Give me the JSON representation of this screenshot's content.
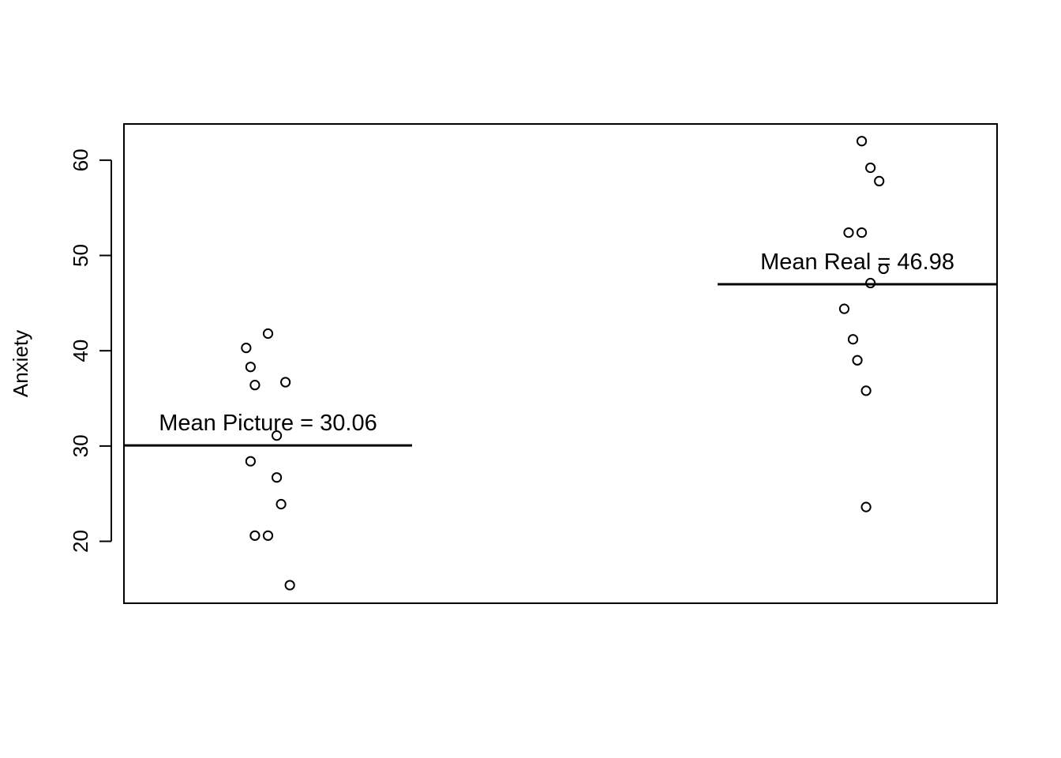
{
  "chart_data": {
    "type": "scatter",
    "ylabel": "Anxiety",
    "ylim": [
      13.5,
      63.8
    ],
    "xlim": [
      0.5,
      2.5
    ],
    "yticks": [
      20,
      30,
      40,
      50,
      60
    ],
    "grid": false,
    "series": [
      {
        "group": 1,
        "points": [
          {
            "x": 0.78,
            "y": 40.3
          },
          {
            "x": 0.79,
            "y": 38.3
          },
          {
            "x": 0.8,
            "y": 36.4
          },
          {
            "x": 0.83,
            "y": 41.8
          },
          {
            "x": 0.87,
            "y": 36.7
          },
          {
            "x": 0.85,
            "y": 31.1
          },
          {
            "x": 0.79,
            "y": 28.4
          },
          {
            "x": 0.85,
            "y": 26.7
          },
          {
            "x": 0.86,
            "y": 23.9
          },
          {
            "x": 0.8,
            "y": 20.6
          },
          {
            "x": 0.83,
            "y": 20.6
          },
          {
            "x": 0.88,
            "y": 15.4
          }
        ],
        "mean": 30.06,
        "mean_label": "Mean Picture = 30.06",
        "mean_line_x": [
          0.5,
          1.16
        ]
      },
      {
        "group": 2,
        "points": [
          {
            "x": 2.19,
            "y": 62.0
          },
          {
            "x": 2.21,
            "y": 59.2
          },
          {
            "x": 2.23,
            "y": 57.8
          },
          {
            "x": 2.16,
            "y": 52.4
          },
          {
            "x": 2.19,
            "y": 52.4
          },
          {
            "x": 2.24,
            "y": 48.6
          },
          {
            "x": 2.21,
            "y": 47.1
          },
          {
            "x": 2.15,
            "y": 44.4
          },
          {
            "x": 2.17,
            "y": 41.2
          },
          {
            "x": 2.18,
            "y": 39.0
          },
          {
            "x": 2.2,
            "y": 35.8
          },
          {
            "x": 2.2,
            "y": 23.6
          }
        ],
        "mean": 46.98,
        "mean_label": "Mean Real = 46.98",
        "mean_line_x": [
          1.86,
          2.5
        ]
      }
    ]
  }
}
